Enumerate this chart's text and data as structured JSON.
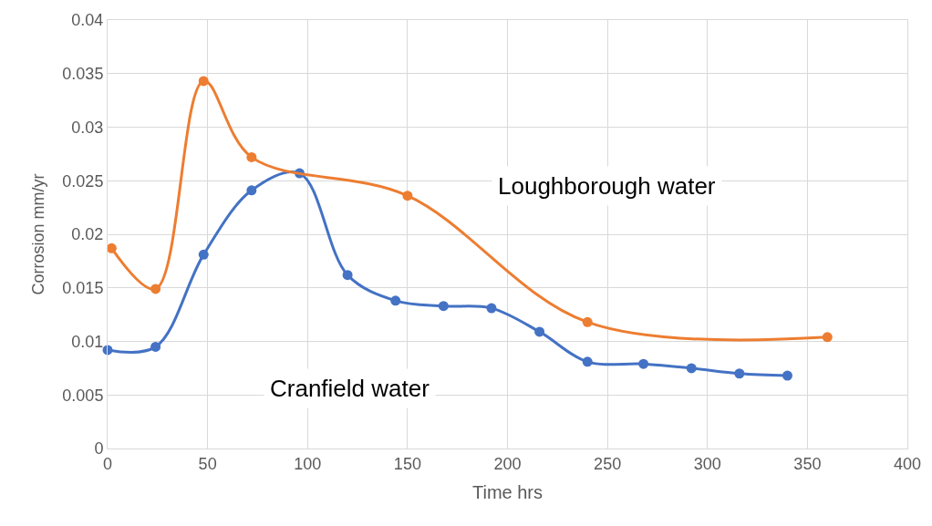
{
  "chart_data": {
    "type": "line",
    "xlabel": "Time hrs",
    "ylabel": "Corrosion mm/yr",
    "xlim": [
      0,
      400
    ],
    "xticks": [
      0,
      50,
      100,
      150,
      200,
      250,
      300,
      350,
      400
    ],
    "ylim": [
      0,
      0.04
    ],
    "yticks": [
      0,
      0.005,
      0.01,
      0.015,
      0.02,
      0.025,
      0.03,
      0.035,
      0.04
    ],
    "grid": true,
    "legend": false,
    "marker": "circle",
    "line_style": "solid",
    "series": [
      {
        "name": "Cranfield water",
        "color": "#4472c4",
        "x": [
          0,
          24,
          48,
          72,
          96,
          120,
          144,
          168,
          192,
          216,
          240,
          268,
          292,
          316,
          340
        ],
        "values": [
          0.0092,
          0.0095,
          0.0181,
          0.0241,
          0.0257,
          0.0162,
          0.0138,
          0.0133,
          0.0131,
          0.0109,
          0.0081,
          0.0079,
          0.0075,
          0.007,
          0.0068
        ]
      },
      {
        "name": "Loughborough water",
        "color": "#ed7d31",
        "x": [
          2,
          24,
          48,
          72,
          150,
          240,
          360
        ],
        "values": [
          0.0187,
          0.0149,
          0.0343,
          0.0272,
          0.0236,
          0.0118,
          0.0104
        ]
      }
    ]
  }
}
